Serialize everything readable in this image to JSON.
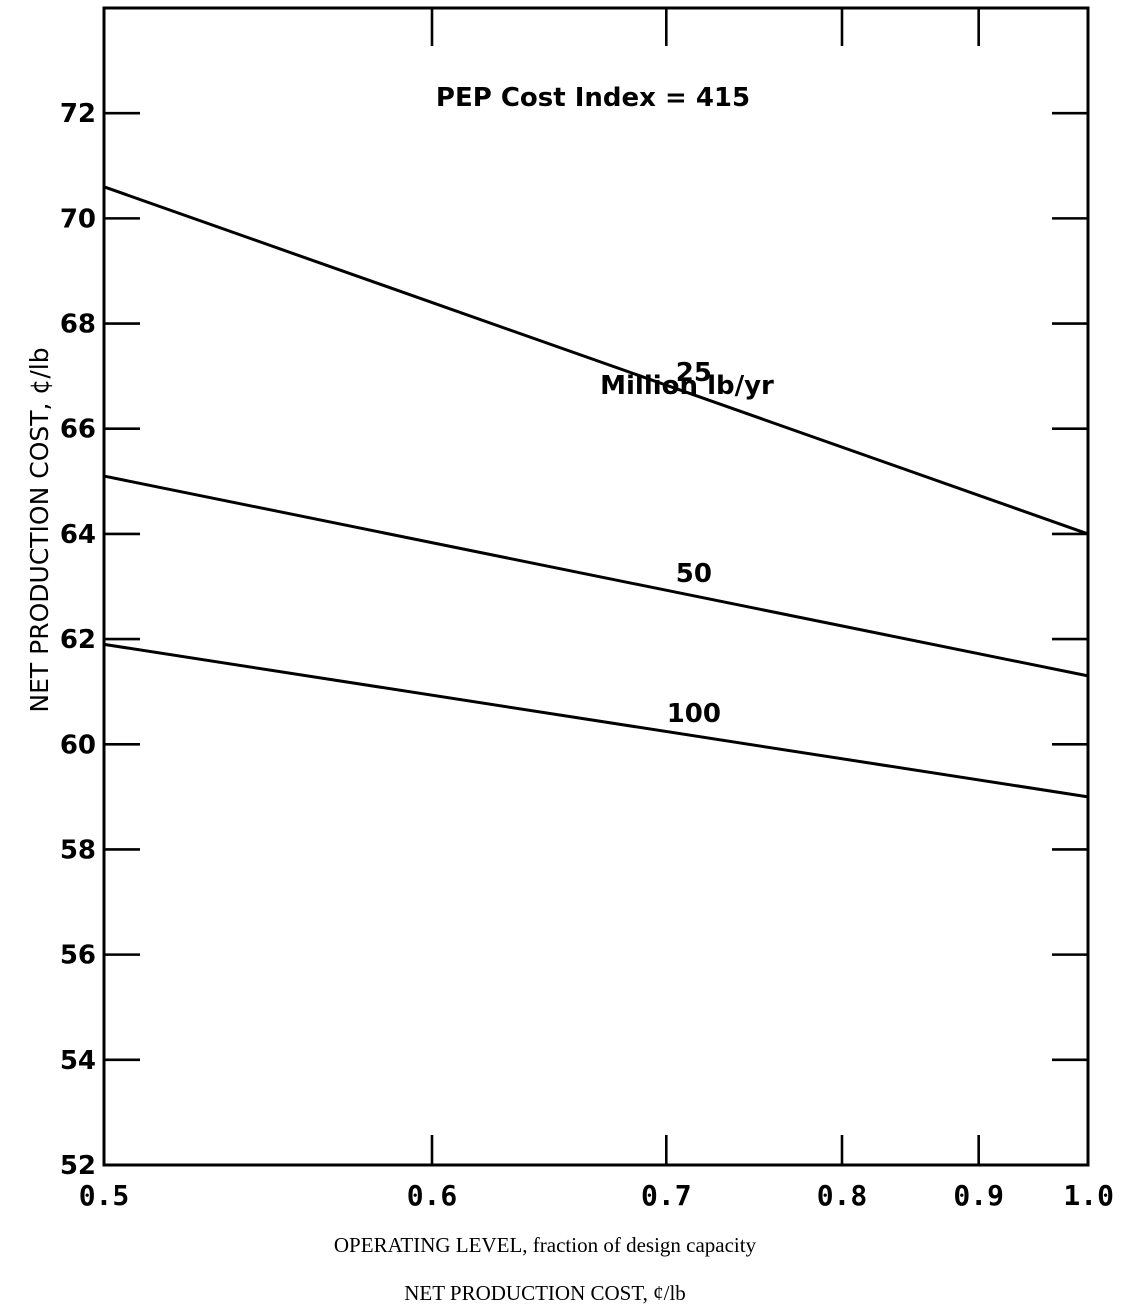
{
  "chart_data": {
    "type": "line",
    "annotations": {
      "index_note": "PEP Cost Index = 415",
      "legend_title": "Million lb/yr"
    },
    "ylabel": "NET PRODUCTION COST, ¢/lb",
    "xlabel": "OPERATING LEVEL, fraction of design capacity",
    "subcaption": "NET PRODUCTION COST, ¢/lb",
    "x_scale": "reciprocal",
    "xlim": [
      0.5,
      1.0
    ],
    "ylim": [
      52,
      74
    ],
    "x_ticks": [
      {
        "value": 0.5,
        "label": "0.5"
      },
      {
        "value": 0.6,
        "label": "0.6"
      },
      {
        "value": 0.7,
        "label": "0.7"
      },
      {
        "value": 0.8,
        "label": "0.8"
      },
      {
        "value": 0.9,
        "label": "0.9"
      },
      {
        "value": 1.0,
        "label": "1.0"
      }
    ],
    "y_ticks": [
      52,
      54,
      56,
      58,
      60,
      62,
      64,
      66,
      68,
      70,
      72
    ],
    "grid": false,
    "series": [
      {
        "name": "25",
        "x": [
          0.5,
          1.0
        ],
        "y": [
          70.6,
          64.0
        ]
      },
      {
        "name": "50",
        "x": [
          0.5,
          1.0
        ],
        "y": [
          65.1,
          61.3
        ]
      },
      {
        "name": "100",
        "x": [
          0.5,
          1.0
        ],
        "y": [
          61.9,
          59.0
        ]
      }
    ]
  }
}
